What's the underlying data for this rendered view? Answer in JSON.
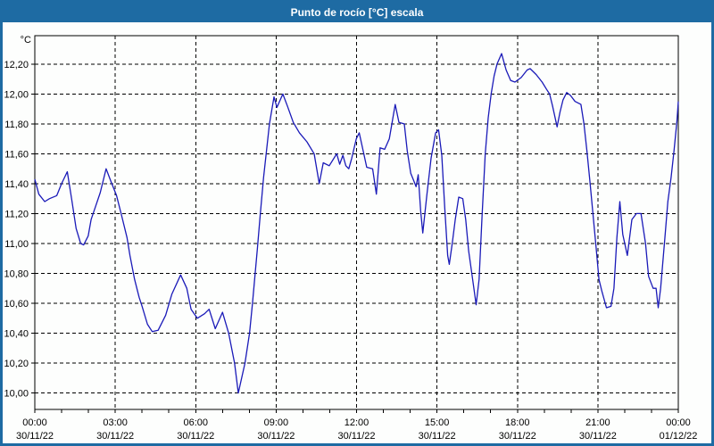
{
  "window": {
    "title": "Punto de rocío [°C] escala",
    "title_bar_color": "#1e6ba3",
    "border_color": "#1e6ba3"
  },
  "chart_data": {
    "type": "line",
    "title": "Punto de rocío [°C] escala",
    "y_unit_label": "°C",
    "ylabel": "",
    "xlabel": "",
    "ylim": [
      9.89,
      12.39
    ],
    "xlim_hours": [
      0,
      24
    ],
    "grid": "dashed",
    "legend_position": "none",
    "line_color": "#1a1ab8",
    "minor_x_tick_hours": 1,
    "y_ticks": [
      {
        "value": 12.2,
        "label": "12,20"
      },
      {
        "value": 12.0,
        "label": "12,00"
      },
      {
        "value": 11.8,
        "label": "11,80"
      },
      {
        "value": 11.6,
        "label": "11,60"
      },
      {
        "value": 11.4,
        "label": "11,40"
      },
      {
        "value": 11.2,
        "label": "11,20"
      },
      {
        "value": 11.0,
        "label": "11,00"
      },
      {
        "value": 10.8,
        "label": "10,80"
      },
      {
        "value": 10.6,
        "label": "10,60"
      },
      {
        "value": 10.4,
        "label": "10,40"
      },
      {
        "value": 10.2,
        "label": "10,20"
      },
      {
        "value": 10.0,
        "label": "10,00"
      }
    ],
    "x_ticks": [
      {
        "hour": 0,
        "time": "00:00",
        "date": "30/11/22"
      },
      {
        "hour": 3,
        "time": "03:00",
        "date": "30/11/22"
      },
      {
        "hour": 6,
        "time": "06:00",
        "date": "30/11/22"
      },
      {
        "hour": 9,
        "time": "09:00",
        "date": "30/11/22"
      },
      {
        "hour": 12,
        "time": "12:00",
        "date": "30/11/22"
      },
      {
        "hour": 15,
        "time": "15:00",
        "date": "30/11/22"
      },
      {
        "hour": 18,
        "time": "18:00",
        "date": "30/11/22"
      },
      {
        "hour": 21,
        "time": "21:00",
        "date": "30/11/22"
      },
      {
        "hour": 24,
        "time": "00:00",
        "date": "01/12/22"
      }
    ],
    "series": [
      {
        "name": "Punto de rocío",
        "points": [
          [
            0,
            11.43
          ],
          [
            0.15,
            11.33
          ],
          [
            0.37,
            11.28
          ],
          [
            0.55,
            11.3
          ],
          [
            0.82,
            11.32
          ],
          [
            1.0,
            11.4
          ],
          [
            1.21,
            11.48
          ],
          [
            1.37,
            11.3
          ],
          [
            1.54,
            11.1
          ],
          [
            1.71,
            11.0
          ],
          [
            1.82,
            10.99
          ],
          [
            1.99,
            11.05
          ],
          [
            2.1,
            11.16
          ],
          [
            2.27,
            11.25
          ],
          [
            2.44,
            11.34
          ],
          [
            2.66,
            11.5
          ],
          [
            2.83,
            11.42
          ],
          [
            3.05,
            11.32
          ],
          [
            3.22,
            11.2
          ],
          [
            3.44,
            11.04
          ],
          [
            3.55,
            10.92
          ],
          [
            3.72,
            10.76
          ],
          [
            3.89,
            10.64
          ],
          [
            4.0,
            10.58
          ],
          [
            4.2,
            10.46
          ],
          [
            4.38,
            10.41
          ],
          [
            4.6,
            10.42
          ],
          [
            4.88,
            10.52
          ],
          [
            5.11,
            10.66
          ],
          [
            5.44,
            10.79
          ],
          [
            5.67,
            10.7
          ],
          [
            5.83,
            10.56
          ],
          [
            6.06,
            10.5
          ],
          [
            6.33,
            10.53
          ],
          [
            6.5,
            10.56
          ],
          [
            6.73,
            10.43
          ],
          [
            7.0,
            10.54
          ],
          [
            7.23,
            10.4
          ],
          [
            7.45,
            10.2
          ],
          [
            7.59,
            10.0
          ],
          [
            7.84,
            10.2
          ],
          [
            8.01,
            10.4
          ],
          [
            8.12,
            10.6
          ],
          [
            8.3,
            10.96
          ],
          [
            8.41,
            11.2
          ],
          [
            8.53,
            11.44
          ],
          [
            8.64,
            11.62
          ],
          [
            8.75,
            11.8
          ],
          [
            8.92,
            11.98
          ],
          [
            9.03,
            11.91
          ],
          [
            9.25,
            12.0
          ],
          [
            9.42,
            11.92
          ],
          [
            9.64,
            11.81
          ],
          [
            9.87,
            11.74
          ],
          [
            10.15,
            11.68
          ],
          [
            10.42,
            11.6
          ],
          [
            10.61,
            11.4
          ],
          [
            10.76,
            11.54
          ],
          [
            10.98,
            11.52
          ],
          [
            11.26,
            11.6
          ],
          [
            11.37,
            11.53
          ],
          [
            11.49,
            11.59
          ],
          [
            11.6,
            11.52
          ],
          [
            11.71,
            11.5
          ],
          [
            11.82,
            11.57
          ],
          [
            11.99,
            11.7
          ],
          [
            12.1,
            11.74
          ],
          [
            12.38,
            11.51
          ],
          [
            12.6,
            11.5
          ],
          [
            12.74,
            11.33
          ],
          [
            12.88,
            11.64
          ],
          [
            13.05,
            11.63
          ],
          [
            13.22,
            11.7
          ],
          [
            13.44,
            11.93
          ],
          [
            13.58,
            11.81
          ],
          [
            13.78,
            11.8
          ],
          [
            13.89,
            11.62
          ],
          [
            14.02,
            11.47
          ],
          [
            14.11,
            11.43
          ],
          [
            14.22,
            11.38
          ],
          [
            14.3,
            11.46
          ],
          [
            14.39,
            11.22
          ],
          [
            14.47,
            11.07
          ],
          [
            14.62,
            11.32
          ],
          [
            14.78,
            11.57
          ],
          [
            14.95,
            11.74
          ],
          [
            15.06,
            11.76
          ],
          [
            15.18,
            11.59
          ],
          [
            15.29,
            11.24
          ],
          [
            15.4,
            10.92
          ],
          [
            15.46,
            10.86
          ],
          [
            15.57,
            11.0
          ],
          [
            15.68,
            11.16
          ],
          [
            15.81,
            11.31
          ],
          [
            15.96,
            11.3
          ],
          [
            16.07,
            11.16
          ],
          [
            16.18,
            10.95
          ],
          [
            16.29,
            10.81
          ],
          [
            16.46,
            10.59
          ],
          [
            16.57,
            10.76
          ],
          [
            16.68,
            11.18
          ],
          [
            16.8,
            11.6
          ],
          [
            16.91,
            11.84
          ],
          [
            17.02,
            12.0
          ],
          [
            17.13,
            12.12
          ],
          [
            17.24,
            12.2
          ],
          [
            17.41,
            12.27
          ],
          [
            17.58,
            12.16
          ],
          [
            17.75,
            12.09
          ],
          [
            17.91,
            12.08
          ],
          [
            18.14,
            12.11
          ],
          [
            18.36,
            12.16
          ],
          [
            18.47,
            12.17
          ],
          [
            18.7,
            12.13
          ],
          [
            18.92,
            12.08
          ],
          [
            19.09,
            12.03
          ],
          [
            19.2,
            12.0
          ],
          [
            19.31,
            11.92
          ],
          [
            19.48,
            11.78
          ],
          [
            19.59,
            11.88
          ],
          [
            19.7,
            11.96
          ],
          [
            19.84,
            12.01
          ],
          [
            19.98,
            11.99
          ],
          [
            20.15,
            11.95
          ],
          [
            20.37,
            11.93
          ],
          [
            20.48,
            11.8
          ],
          [
            20.59,
            11.62
          ],
          [
            20.7,
            11.42
          ],
          [
            20.82,
            11.19
          ],
          [
            20.93,
            10.98
          ],
          [
            21.04,
            10.76
          ],
          [
            21.15,
            10.68
          ],
          [
            21.32,
            10.57
          ],
          [
            21.49,
            10.58
          ],
          [
            21.6,
            10.7
          ],
          [
            21.71,
            11.04
          ],
          [
            21.82,
            11.28
          ],
          [
            21.93,
            11.06
          ],
          [
            22.1,
            10.92
          ],
          [
            22.27,
            11.16
          ],
          [
            22.44,
            11.2
          ],
          [
            22.61,
            11.2
          ],
          [
            22.78,
            11.0
          ],
          [
            22.89,
            10.78
          ],
          [
            23.06,
            10.7
          ],
          [
            23.17,
            10.7
          ],
          [
            23.25,
            10.57
          ],
          [
            23.34,
            10.7
          ],
          [
            23.5,
            11.04
          ],
          [
            23.61,
            11.28
          ],
          [
            23.73,
            11.44
          ],
          [
            23.84,
            11.62
          ],
          [
            23.95,
            11.82
          ],
          [
            24.0,
            11.95
          ]
        ]
      }
    ]
  }
}
